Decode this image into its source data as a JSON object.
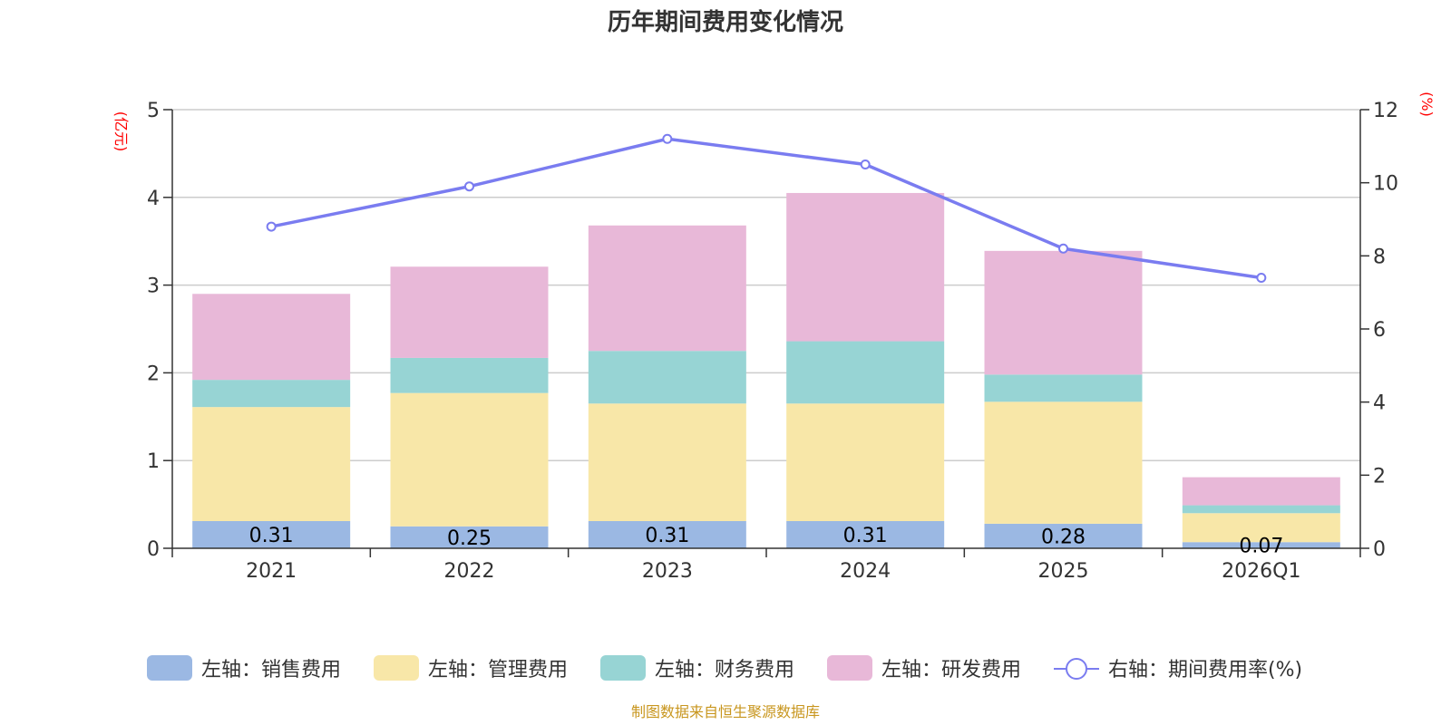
{
  "chart_data": {
    "type": "bar",
    "stacked": true,
    "title": "历年期间费用变化情况",
    "categories": [
      "2021",
      "2022",
      "2023",
      "2024",
      "2025",
      "2026Q1"
    ],
    "left_axis": {
      "unit": "(亿元)",
      "ylim": [
        0,
        5
      ],
      "ticks": [
        "0",
        "1",
        "2",
        "3",
        "4",
        "5"
      ],
      "tick_values": [
        0,
        1,
        2,
        3,
        4,
        5
      ]
    },
    "right_axis": {
      "unit": "(%)",
      "ylim": [
        0,
        12
      ],
      "ticks": [
        "0",
        "2",
        "4",
        "6",
        "8",
        "10",
        "12"
      ],
      "tick_values": [
        0,
        2,
        4,
        6,
        8,
        10,
        12
      ]
    },
    "series": [
      {
        "name": "左轴：销售费用",
        "axis": "left",
        "kind": "bar",
        "color": "#9bb8e3",
        "values": [
          0.31,
          0.25,
          0.31,
          0.31,
          0.28,
          0.07
        ],
        "labels": [
          "0.31",
          "0.25",
          "0.31",
          "0.31",
          "0.28",
          "0.07"
        ]
      },
      {
        "name": "左轴：管理费用",
        "axis": "left",
        "kind": "bar",
        "color": "#f8e7a8",
        "values": [
          1.3,
          1.52,
          1.34,
          1.34,
          1.39,
          0.33
        ]
      },
      {
        "name": "左轴：财务费用",
        "axis": "left",
        "kind": "bar",
        "color": "#97d4d4",
        "values": [
          0.31,
          0.4,
          0.6,
          0.71,
          0.31,
          0.09
        ]
      },
      {
        "name": "左轴：研发费用",
        "axis": "left",
        "kind": "bar",
        "color": "#e8b8d8",
        "values": [
          0.98,
          1.04,
          1.43,
          1.69,
          1.41,
          0.32
        ]
      },
      {
        "name": "右轴：期间费用率(%)",
        "axis": "right",
        "kind": "line",
        "color": "#7a7cf0",
        "values": [
          8.8,
          9.9,
          11.2,
          10.5,
          8.2,
          7.4
        ]
      }
    ],
    "legend_position": "bottom",
    "grid": true,
    "source": "制图数据来自恒生聚源数据库"
  }
}
